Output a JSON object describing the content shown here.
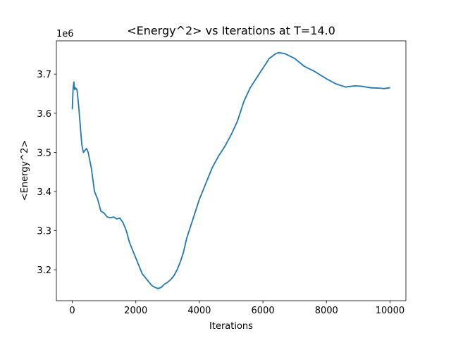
{
  "chart_data": {
    "type": "line",
    "title": "<Energy^2> vs Iterations at T=14.0",
    "x_label": "Iterations",
    "y_label": "<Energy^2>",
    "y_offset_label": "1e6",
    "color": "#1f77b4",
    "x": [
      0,
      25,
      50,
      75,
      100,
      150,
      200,
      250,
      300,
      350,
      400,
      450,
      500,
      600,
      700,
      800,
      900,
      1000,
      1100,
      1200,
      1300,
      1400,
      1500,
      1600,
      1700,
      1800,
      1900,
      2000,
      2100,
      2200,
      2300,
      2400,
      2500,
      2600,
      2700,
      2800,
      2900,
      3000,
      3100,
      3200,
      3300,
      3400,
      3500,
      3600,
      3700,
      3800,
      3900,
      4000,
      4200,
      4400,
      4600,
      4800,
      5000,
      5200,
      5400,
      5600,
      5800,
      6000,
      6200,
      6400,
      6500,
      6700,
      7000,
      7300,
      7600,
      8000,
      8300,
      8600,
      8900,
      9100,
      9400,
      9700,
      9800,
      10000
    ],
    "values": [
      3.61,
      3.66,
      3.68,
      3.66,
      3.665,
      3.66,
      3.62,
      3.57,
      3.52,
      3.5,
      3.505,
      3.51,
      3.5,
      3.46,
      3.4,
      3.38,
      3.35,
      3.345,
      3.335,
      3.333,
      3.335,
      3.33,
      3.332,
      3.32,
      3.3,
      3.27,
      3.25,
      3.23,
      3.21,
      3.19,
      3.18,
      3.17,
      3.16,
      3.155,
      3.152,
      3.155,
      3.163,
      3.168,
      3.175,
      3.185,
      3.2,
      3.22,
      3.245,
      3.28,
      3.305,
      3.33,
      3.355,
      3.38,
      3.42,
      3.46,
      3.49,
      3.515,
      3.545,
      3.58,
      3.63,
      3.665,
      3.69,
      3.715,
      3.74,
      3.752,
      3.755,
      3.752,
      3.74,
      3.72,
      3.708,
      3.688,
      3.675,
      3.667,
      3.67,
      3.669,
      3.665,
      3.664,
      3.663,
      3.665
    ],
    "xlim": [
      -500,
      10500
    ],
    "xticks": [
      0,
      2000,
      4000,
      6000,
      8000,
      10000
    ],
    "ylim": [
      3.121,
      3.785
    ],
    "yticks": [
      3.2,
      3.3,
      3.4,
      3.5,
      3.6,
      3.7
    ]
  }
}
